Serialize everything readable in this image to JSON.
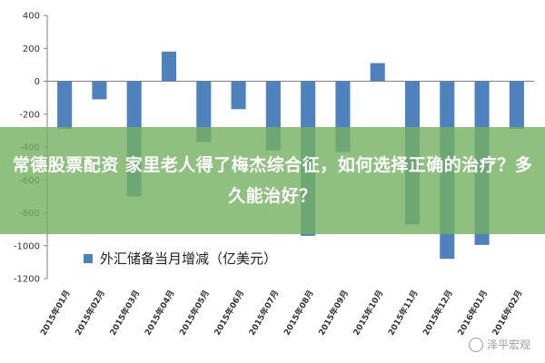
{
  "chart_data": {
    "type": "bar",
    "categories": [
      "2015年01月",
      "2015年02月",
      "2015年03月",
      "2015年04月",
      "2015年05月",
      "2015年06月",
      "2015年07月",
      "2015年08月",
      "2015年09月",
      "2015年10月",
      "2015年11月",
      "2015年12月",
      "2016年01月",
      "2016年02月"
    ],
    "series": [
      {
        "name": "外汇储备当月增减（亿美元）",
        "values": [
          -290,
          -110,
          -700,
          180,
          -370,
          -170,
          -420,
          -940,
          -430,
          110,
          -870,
          -1080,
          -995,
          -290
        ]
      }
    ],
    "yticks": [
      "400",
      "200",
      "0",
      "-200",
      "-400",
      "-600",
      "-800",
      "-1000",
      "-1200"
    ],
    "ylim": [
      -1200,
      400
    ],
    "grid": false,
    "legend": "bottom-left",
    "bar_color": "#4f81bd"
  },
  "overlay": {
    "title": "常德股票配资 家里老人得了梅杰综合征，如何选择正确的治疗？多久能治好？",
    "banner_color": "#74b060"
  },
  "watermark": {
    "text": "泽平宏观"
  }
}
